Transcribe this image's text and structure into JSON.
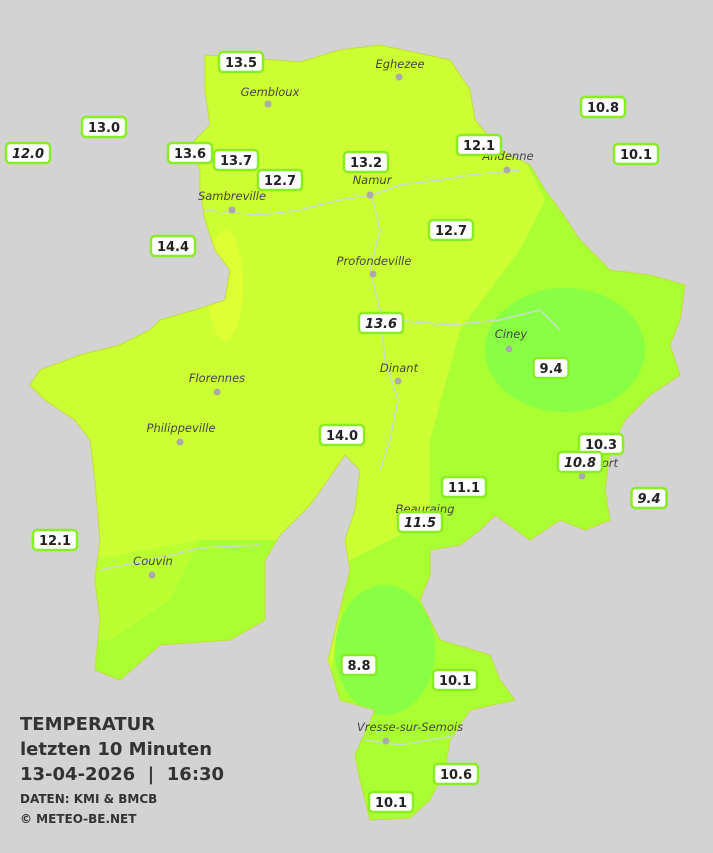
{
  "title": {
    "line1": "TEMPERATUR",
    "line2": "letzten 10 Minuten",
    "line3": "13-04-2026  |  16:30",
    "source": "DATEN: KMI & BMCB",
    "copyright": "© METEO-BE.NET"
  },
  "cities": [
    "Eghezee",
    "Gembloux",
    "Andenne",
    "Namur",
    "Sambreville",
    "Profondeville",
    "Ciney",
    "Dinant",
    "Florennes",
    "Philippeville",
    "Couvin",
    "Vresse-sur-Semois",
    "Beauraing",
    "Rochefort"
  ],
  "stations": [
    "13.5",
    "13.0",
    "12.0",
    "13.6",
    "13.7",
    "12.7",
    "13.2",
    "12.1",
    "10.8",
    "10.1",
    "14.4",
    "12.7",
    "13.6",
    "9.4",
    "14.0",
    "10.3",
    "10.8",
    "11.1",
    "9.4",
    "11.5",
    "12.1",
    "8.8",
    "10.1",
    "10.6",
    "10.1"
  ]
}
